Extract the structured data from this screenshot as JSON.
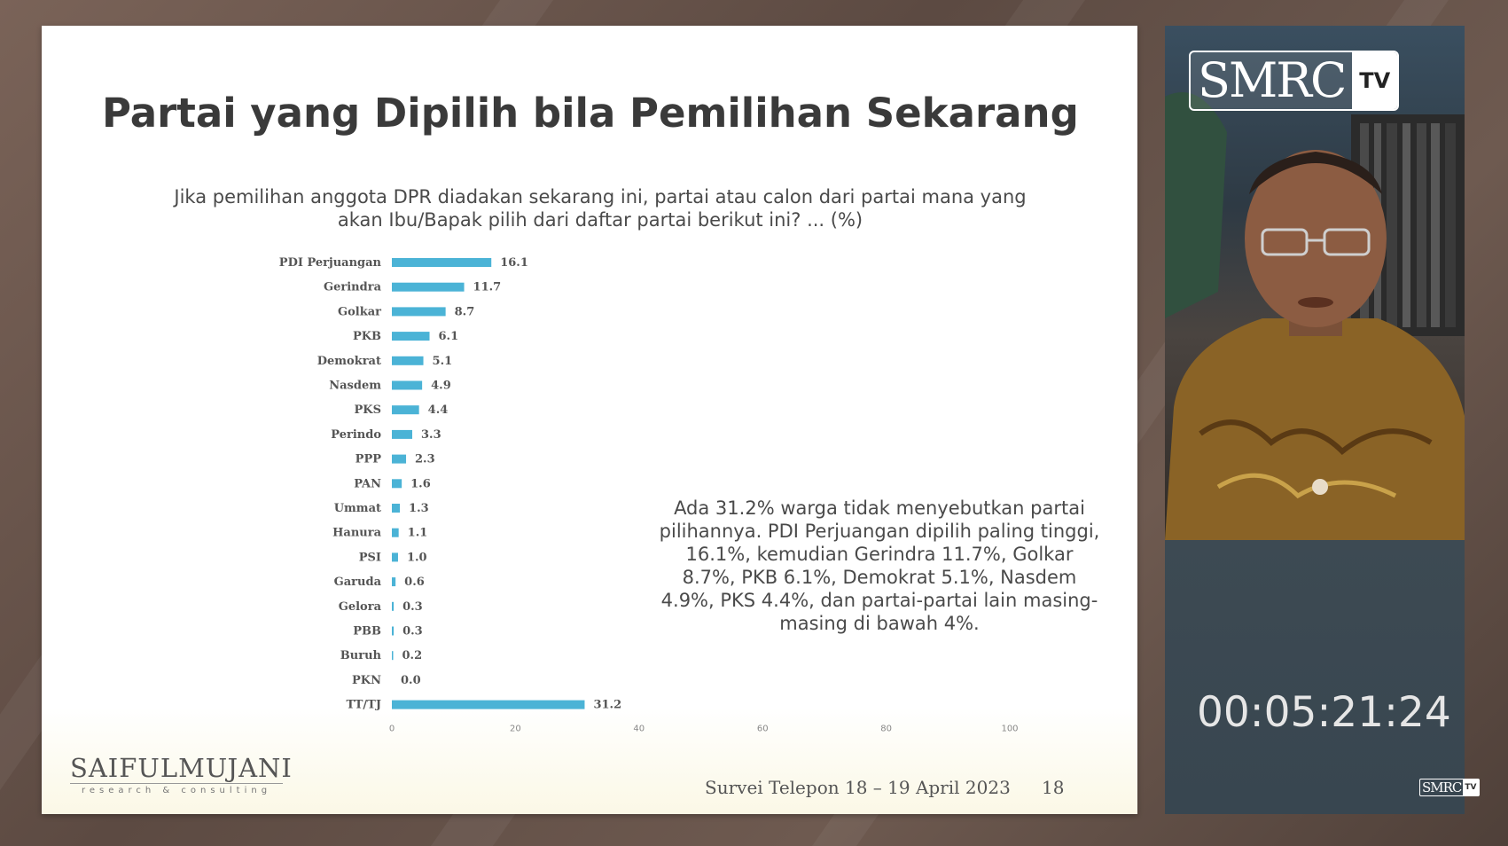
{
  "slide": {
    "title": "Partai yang Dipilih bila Pemilihan Sekarang",
    "question_line1": "Jika pemilihan anggota DPR diadakan sekarang ini, partai atau calon dari partai mana yang",
    "question_line2": "akan Ibu/Bapak pilih dari daftar partai berikut ini? ... (%)",
    "summary": "Ada 31.2% warga tidak menyebutkan partai pilihannya. PDI Perjuangan dipilih paling tinggi, 16.1%, kemudian Gerindra 11.7%, Golkar 8.7%, PKB 6.1%, Demokrat 5.1%, Nasdem 4.9%, PKS 4.4%, dan partai-partai lain masing-masing di bawah 4%.",
    "logo_main": "SAIFULMUJANI",
    "logo_sub": "research & consulting",
    "source": "Survei Telepon 18 – 19 April 2023",
    "page_number": "18"
  },
  "chart_data": {
    "type": "bar",
    "orientation": "horizontal",
    "categories": [
      "PDI Perjuangan",
      "Gerindra",
      "Golkar",
      "PKB",
      "Demokrat",
      "Nasdem",
      "PKS",
      "Perindo",
      "PPP",
      "PAN",
      "Ummat",
      "Hanura",
      "PSI",
      "Garuda",
      "Gelora",
      "PBB",
      "Buruh",
      "PKN",
      "TT/TJ"
    ],
    "values": [
      16.1,
      11.7,
      8.7,
      6.1,
      5.1,
      4.9,
      4.4,
      3.3,
      2.3,
      1.6,
      1.3,
      1.1,
      1.0,
      0.6,
      0.3,
      0.3,
      0.2,
      0.0,
      31.2
    ],
    "value_labels": [
      "16.1",
      "11.7",
      "8.7",
      "6.1",
      "5.1",
      "4.9",
      "4.4",
      "3.3",
      "2.3",
      "1.6",
      "1.3",
      "1.1",
      "1.0",
      "0.6",
      "0.3",
      "0.3",
      "0.2",
      "0.0",
      "31.2"
    ],
    "xlim": [
      0,
      100
    ],
    "xticks": [
      "0",
      "20",
      "40",
      "60",
      "80",
      "100"
    ],
    "bar_color": "#4bb3d6",
    "grid": false,
    "legend": "none"
  },
  "overlay": {
    "channel_name": "SMRC",
    "channel_badge": "TV",
    "timecode": "00:05:21:24",
    "watermark_name": "SMRC",
    "watermark_badge": "TV"
  }
}
